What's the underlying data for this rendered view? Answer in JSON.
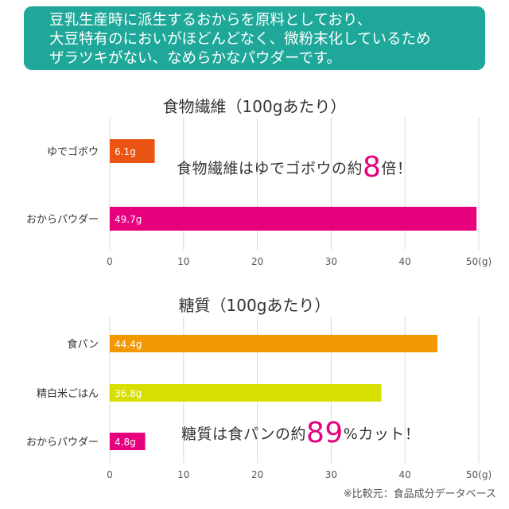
{
  "banner": {
    "lines": [
      "豆乳生産時に派生するおからを原料としており、",
      "大豆特有のにおいがほどんどなく、微粉末化しているため",
      "ザラツキがない、なめらかなパウダーです。"
    ]
  },
  "colors": {
    "banner": "#1fa89a",
    "highlight": "#e6007e"
  },
  "callouts": {
    "fiber": {
      "prefix": "食物繊維はゆでゴボウの約",
      "big": "8",
      "suffix": "倍！"
    },
    "sugar": {
      "prefix": "糖質は食パンの約",
      "big": "89",
      "suffix": "%カット！"
    }
  },
  "footnote": "※比較元：食品成分データベース",
  "chart_data": [
    {
      "type": "bar",
      "orientation": "horizontal",
      "title": "食物繊維（100gあたり）",
      "categories": [
        "ゆでゴボウ",
        "おからパウダー"
      ],
      "values": [
        6.1,
        49.7
      ],
      "value_labels": [
        "6.1g",
        "49.7g"
      ],
      "colors": [
        "#ea5514",
        "#e6007e"
      ],
      "xlim": [
        0,
        50
      ],
      "ticks": [
        "0",
        "10",
        "20",
        "30",
        "40",
        "50(g)"
      ],
      "grid": true
    },
    {
      "type": "bar",
      "orientation": "horizontal",
      "title": "糖質（100gあたり）",
      "categories": [
        "食パン",
        "精白米ごはん",
        "おからパウダー"
      ],
      "values": [
        44.4,
        36.8,
        4.8
      ],
      "value_labels": [
        "44.4g",
        "36.8g",
        "4.8g"
      ],
      "colors": [
        "#f39800",
        "#d7df01",
        "#e6007e"
      ],
      "xlim": [
        0,
        50
      ],
      "ticks": [
        "0",
        "10",
        "20",
        "30",
        "40",
        "50(g)"
      ],
      "grid": true
    }
  ]
}
